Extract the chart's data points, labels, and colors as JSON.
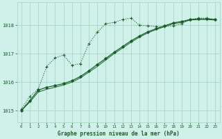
{
  "title": "Graphe pression niveau de la mer (hPa)",
  "bg_color": "#d0f0ea",
  "grid_color": "#b0d8cc",
  "line_color": "#1a5c2a",
  "xlim": [
    -0.5,
    23.5
  ],
  "ylim": [
    1014.6,
    1018.8
  ],
  "yticks": [
    1015,
    1016,
    1017,
    1018
  ],
  "xticks": [
    0,
    1,
    2,
    3,
    4,
    5,
    6,
    7,
    8,
    9,
    10,
    11,
    12,
    13,
    14,
    15,
    16,
    17,
    18,
    19,
    20,
    21,
    22,
    23
  ],
  "s1_x": [
    0,
    1,
    2,
    3,
    4,
    5,
    6,
    7,
    8,
    9,
    10,
    11,
    12,
    13,
    14,
    15,
    16,
    17,
    18,
    19,
    20,
    21,
    22,
    23
  ],
  "s1_y": [
    1015.05,
    1015.5,
    1015.75,
    1016.55,
    1016.85,
    1016.95,
    1016.6,
    1016.65,
    1017.35,
    1017.75,
    1018.05,
    1018.1,
    1018.2,
    1018.25,
    1018.0,
    1017.98,
    1017.95,
    1017.95,
    1017.98,
    1018.05,
    1018.2,
    1018.25,
    1018.25,
    1018.2
  ],
  "s2_x": [
    0,
    1,
    2,
    3,
    4,
    5,
    6,
    7,
    8,
    9,
    10,
    11,
    12,
    13,
    14,
    15,
    16,
    17,
    18,
    19,
    20,
    21,
    22,
    23
  ],
  "s2_y": [
    1015.0,
    1015.35,
    1015.72,
    1015.82,
    1015.88,
    1015.95,
    1016.05,
    1016.2,
    1016.4,
    1016.62,
    1016.83,
    1017.05,
    1017.25,
    1017.45,
    1017.62,
    1017.77,
    1017.88,
    1017.98,
    1018.08,
    1018.13,
    1018.2,
    1018.22,
    1018.22,
    1018.2
  ],
  "s3_x": [
    0,
    1,
    2,
    3,
    4,
    5,
    6,
    7,
    8,
    9,
    10,
    11,
    12,
    13,
    14,
    15,
    16,
    17,
    18,
    19,
    20,
    21,
    22,
    23
  ],
  "s3_y": [
    1015.0,
    1015.3,
    1015.65,
    1015.75,
    1015.82,
    1015.9,
    1016.0,
    1016.15,
    1016.35,
    1016.55,
    1016.78,
    1017.0,
    1017.2,
    1017.4,
    1017.58,
    1017.73,
    1017.85,
    1017.95,
    1018.05,
    1018.1,
    1018.18,
    1018.2,
    1018.2,
    1018.18
  ]
}
